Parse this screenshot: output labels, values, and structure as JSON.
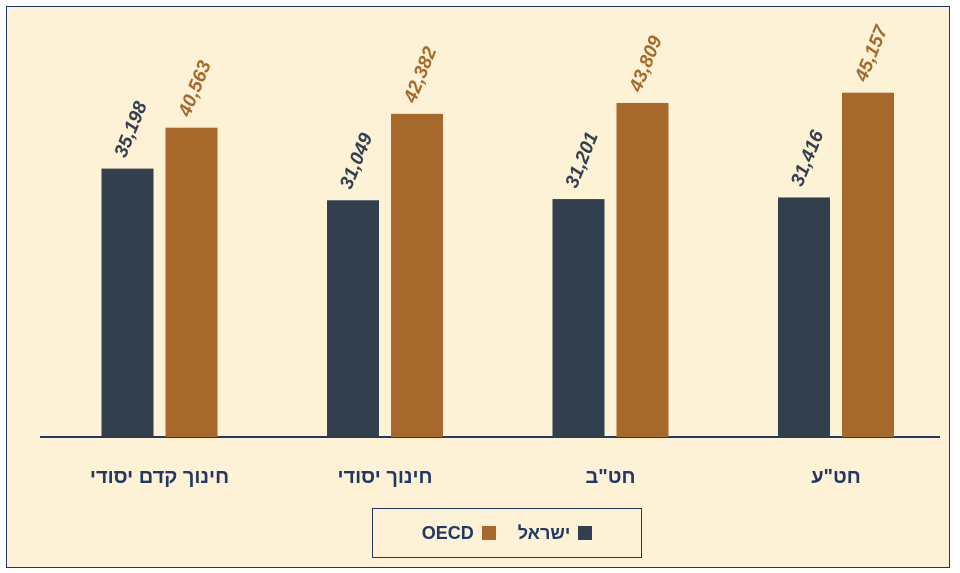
{
  "chart_data": {
    "type": "bar",
    "categories": [
      "חינוך קדם יסודי",
      "חינוך יסודי",
      "חט\"ב",
      "חט\"ע"
    ],
    "series": [
      {
        "name": "ישראל",
        "values": [
          35198,
          31049,
          31201,
          31416
        ],
        "labels": [
          "35,198",
          "31,049",
          "31,201",
          "31,416"
        ],
        "color": "#323f4f"
      },
      {
        "name": "OECD",
        "values": [
          40563,
          42382,
          43809,
          45157
        ],
        "labels": [
          "40,563",
          "42,382",
          "43,809",
          "45,157"
        ],
        "color": "#a7692b"
      }
    ],
    "ylim": [
      0,
      60000
    ],
    "grid": false,
    "legend_position": "bottom"
  },
  "colors": {
    "background": "#fdf1d6",
    "axis": "#1f3864",
    "text": "#1f3864"
  }
}
